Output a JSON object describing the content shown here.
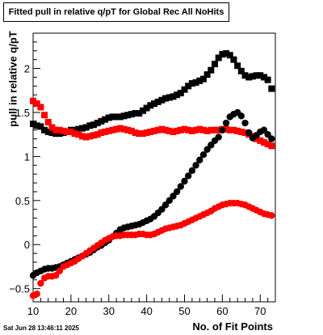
{
  "chart_data": {
    "type": "scatter",
    "title": "Fitted pull in relative q/pT for Global Rec All NoHits",
    "xlabel": "No. of Fit Points",
    "ylabel": "pull in relative q/pT",
    "xlim": [
      10,
      74
    ],
    "ylim": [
      -0.65,
      2.4
    ],
    "x_ticks": [
      10,
      20,
      30,
      40,
      50,
      60,
      70
    ],
    "y_ticks": [
      -0.5,
      0,
      0.5,
      1,
      1.5,
      2
    ],
    "x_tick_labels": [
      "10",
      "20",
      "30",
      "40",
      "50",
      "60",
      "70"
    ],
    "y_tick_labels": [
      "−0.5",
      "0",
      "0.5",
      "1",
      "1.5",
      "2"
    ],
    "grid": false,
    "legend": "none",
    "timestamp": "Sat Jun 28 13:46:11 2025",
    "series": [
      {
        "marker": "square",
        "color": "#000000",
        "x": [
          10,
          11,
          12,
          13,
          14,
          15,
          16,
          17,
          18,
          19,
          20,
          21,
          22,
          23,
          24,
          25,
          26,
          27,
          28,
          29,
          30,
          31,
          32,
          33,
          34,
          35,
          36,
          37,
          38,
          39,
          40,
          41,
          42,
          43,
          44,
          45,
          46,
          47,
          48,
          49,
          50,
          51,
          52,
          53,
          54,
          55,
          56,
          57,
          58,
          59,
          60,
          61,
          62,
          63,
          64,
          65,
          66,
          67,
          68,
          69,
          70,
          71,
          72,
          73
        ],
        "y": [
          1.37,
          1.35,
          1.34,
          1.3,
          1.28,
          1.27,
          1.26,
          1.26,
          1.27,
          1.28,
          1.3,
          1.3,
          1.31,
          1.32,
          1.33,
          1.35,
          1.36,
          1.38,
          1.4,
          1.42,
          1.44,
          1.45,
          1.45,
          1.45,
          1.46,
          1.47,
          1.48,
          1.49,
          1.49,
          1.52,
          1.55,
          1.58,
          1.6,
          1.62,
          1.64,
          1.66,
          1.67,
          1.68,
          1.7,
          1.72,
          1.76,
          1.8,
          1.83,
          1.84,
          1.86,
          1.88,
          1.93,
          1.98,
          2.05,
          2.12,
          2.16,
          2.17,
          2.15,
          2.1,
          2.03,
          1.97,
          1.92,
          1.9,
          1.91,
          1.92,
          1.92,
          1.9,
          1.87,
          1.77
        ]
      },
      {
        "marker": "square",
        "color": "#ff0000",
        "x": [
          10,
          11,
          12,
          13,
          14,
          15,
          16,
          17,
          18,
          19,
          20,
          21,
          22,
          23,
          24,
          25,
          26,
          27,
          28,
          29,
          30,
          31,
          32,
          33,
          34,
          35,
          36,
          37,
          38,
          39,
          40,
          41,
          42,
          43,
          44,
          45,
          46,
          47,
          48,
          49,
          50,
          51,
          52,
          53,
          54,
          55,
          56,
          57,
          58,
          59,
          60,
          61,
          62,
          63,
          64,
          65,
          66,
          67,
          68,
          69,
          70,
          71,
          72,
          73
        ],
        "y": [
          1.63,
          1.6,
          1.56,
          1.47,
          1.39,
          1.33,
          1.3,
          1.3,
          1.29,
          1.28,
          1.28,
          1.26,
          1.25,
          1.23,
          1.22,
          1.23,
          1.24,
          1.25,
          1.27,
          1.28,
          1.29,
          1.3,
          1.31,
          1.32,
          1.31,
          1.3,
          1.29,
          1.27,
          1.26,
          1.26,
          1.27,
          1.28,
          1.29,
          1.3,
          1.31,
          1.3,
          1.29,
          1.28,
          1.29,
          1.3,
          1.31,
          1.3,
          1.29,
          1.3,
          1.31,
          1.3,
          1.29,
          1.3,
          1.3,
          1.3,
          1.31,
          1.31,
          1.3,
          1.3,
          1.29,
          1.28,
          1.27,
          1.25,
          1.23,
          1.2,
          1.18,
          1.16,
          1.14,
          1.12
        ]
      },
      {
        "marker": "circle",
        "color": "#000000",
        "x": [
          10,
          11,
          12,
          13,
          14,
          15,
          16,
          17,
          18,
          19,
          20,
          21,
          22,
          23,
          24,
          25,
          26,
          27,
          28,
          29,
          30,
          31,
          32,
          33,
          34,
          35,
          36,
          37,
          38,
          39,
          40,
          41,
          42,
          43,
          44,
          45,
          46,
          47,
          48,
          49,
          50,
          51,
          52,
          53,
          54,
          55,
          56,
          57,
          58,
          59,
          60,
          61,
          62,
          63,
          64,
          65,
          66,
          67,
          68,
          69,
          70,
          71,
          72,
          73
        ],
        "y": [
          -0.35,
          -0.32,
          -0.3,
          -0.28,
          -0.27,
          -0.27,
          -0.26,
          -0.25,
          -0.23,
          -0.21,
          -0.19,
          -0.17,
          -0.15,
          -0.13,
          -0.11,
          -0.09,
          -0.06,
          -0.03,
          -0.01,
          0.02,
          0.05,
          0.09,
          0.13,
          0.17,
          0.19,
          0.2,
          0.21,
          0.22,
          0.23,
          0.25,
          0.27,
          0.29,
          0.32,
          0.36,
          0.4,
          0.45,
          0.5,
          0.55,
          0.6,
          0.66,
          0.72,
          0.78,
          0.84,
          0.9,
          0.96,
          1.02,
          1.08,
          1.13,
          1.18,
          1.22,
          1.3,
          1.38,
          1.45,
          1.48,
          1.5,
          1.46,
          1.38,
          1.27,
          1.21,
          1.24,
          1.28,
          1.3,
          1.25,
          1.2
        ]
      },
      {
        "marker": "circle",
        "color": "#ff0000",
        "x": [
          10,
          11,
          12,
          13,
          14,
          15,
          16,
          17,
          18,
          19,
          20,
          21,
          22,
          23,
          24,
          25,
          26,
          27,
          28,
          29,
          30,
          31,
          32,
          33,
          34,
          35,
          36,
          37,
          38,
          39,
          40,
          41,
          42,
          43,
          44,
          45,
          46,
          47,
          48,
          49,
          50,
          51,
          52,
          53,
          54,
          55,
          56,
          57,
          58,
          59,
          60,
          61,
          62,
          63,
          64,
          65,
          66,
          67,
          68,
          69,
          70,
          71,
          72,
          73
        ],
        "y": [
          -0.58,
          -0.56,
          -0.44,
          -0.38,
          -0.36,
          -0.36,
          -0.35,
          -0.3,
          -0.25,
          -0.23,
          -0.21,
          -0.19,
          -0.16,
          -0.13,
          -0.1,
          -0.07,
          -0.04,
          -0.01,
          0.02,
          0.05,
          0.07,
          0.09,
          0.1,
          0.1,
          0.11,
          0.11,
          0.11,
          0.11,
          0.12,
          0.12,
          0.11,
          0.11,
          0.12,
          0.14,
          0.16,
          0.18,
          0.19,
          0.2,
          0.21,
          0.22,
          0.24,
          0.26,
          0.28,
          0.3,
          0.32,
          0.34,
          0.36,
          0.38,
          0.41,
          0.43,
          0.45,
          0.46,
          0.47,
          0.47,
          0.47,
          0.46,
          0.45,
          0.43,
          0.41,
          0.39,
          0.37,
          0.35,
          0.34,
          0.33
        ]
      }
    ]
  }
}
